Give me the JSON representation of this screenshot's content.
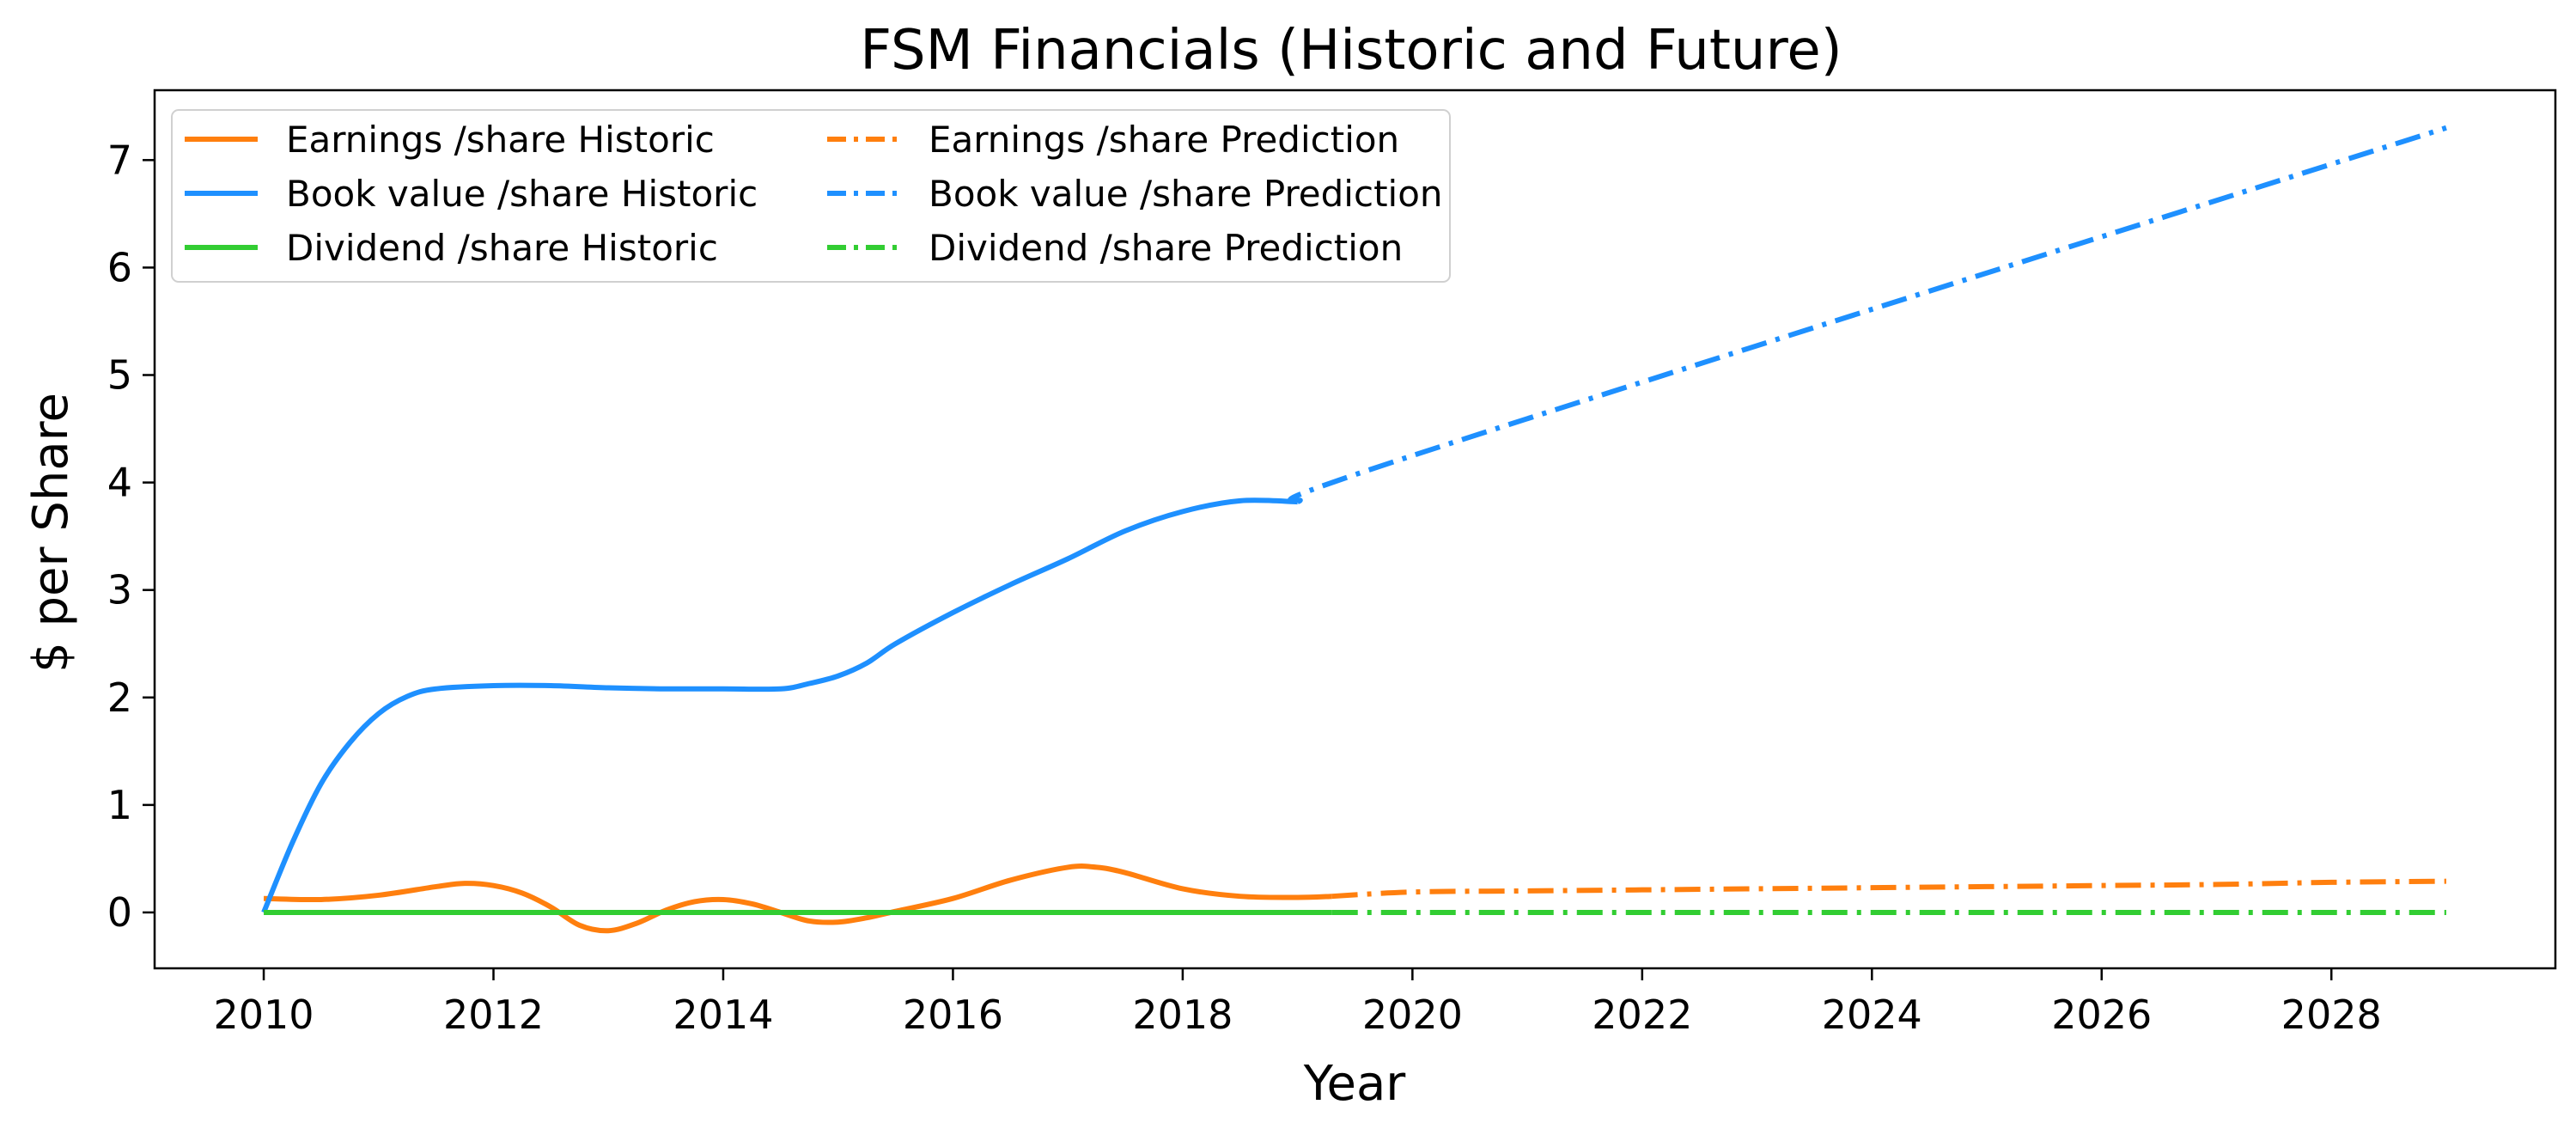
{
  "chart_data": {
    "type": "line",
    "title": "FSM Financials (Historic and Future)",
    "xlabel": "Year",
    "ylabel": "$ per Share",
    "xlim": [
      2009.05,
      2029.95
    ],
    "ylim": [
      -0.52,
      7.65
    ],
    "x_ticks": [
      2010,
      2012,
      2014,
      2016,
      2018,
      2020,
      2022,
      2024,
      2026,
      2028
    ],
    "x_tick_labels": [
      "2010",
      "2012",
      "2014",
      "2016",
      "2018",
      "2020",
      "2022",
      "2024",
      "2026",
      "2028"
    ],
    "y_ticks": [
      0,
      1,
      2,
      3,
      4,
      5,
      6,
      7
    ],
    "y_tick_labels": [
      "0",
      "1",
      "2",
      "3",
      "4",
      "5",
      "6",
      "7"
    ],
    "grid": false,
    "legend_position": "top-left",
    "legend_columns": 2,
    "series": [
      {
        "name": "Earnings /share Historic",
        "color": "#ff7f0e",
        "style": "solid",
        "x": [
          2010,
          2010.5,
          2011,
          2011.5,
          2011.75,
          2012,
          2012.25,
          2012.5,
          2012.75,
          2013,
          2013.25,
          2013.5,
          2013.75,
          2014,
          2014.25,
          2014.5,
          2014.75,
          2015,
          2015.25,
          2015.5,
          2016,
          2016.5,
          2017,
          2017.25,
          2017.5,
          2018,
          2018.5,
          2019,
          2019.3
        ],
        "y": [
          0.13,
          0.12,
          0.16,
          0.24,
          0.27,
          0.25,
          0.18,
          0.05,
          -0.12,
          -0.17,
          -0.1,
          0.02,
          0.1,
          0.12,
          0.08,
          0.0,
          -0.08,
          -0.09,
          -0.05,
          0.01,
          0.13,
          0.3,
          0.42,
          0.42,
          0.37,
          0.22,
          0.15,
          0.14,
          0.15
        ]
      },
      {
        "name": "Book value /share Historic",
        "color": "#1e90ff",
        "style": "solid",
        "x": [
          2010,
          2010.25,
          2010.5,
          2010.75,
          2011,
          2011.25,
          2011.5,
          2012,
          2012.5,
          2013,
          2013.5,
          2014,
          2014.5,
          2014.75,
          2015,
          2015.25,
          2015.5,
          2016,
          2016.5,
          2017,
          2017.5,
          2018,
          2018.5,
          2019
        ],
        "y": [
          0.0,
          0.65,
          1.2,
          1.58,
          1.85,
          2.01,
          2.08,
          2.11,
          2.11,
          2.09,
          2.08,
          2.08,
          2.08,
          2.13,
          2.2,
          2.32,
          2.5,
          2.79,
          3.05,
          3.29,
          3.55,
          3.73,
          3.83,
          3.82
        ]
      },
      {
        "name": "Dividend /share Historic",
        "color": "#32cd32",
        "style": "solid",
        "x": [
          2010,
          2019.3
        ],
        "y": [
          0.0,
          0.0
        ]
      },
      {
        "name": "Earnings /share Prediction",
        "color": "#ff7f0e",
        "style": "dashdot",
        "x": [
          2019.3,
          2020,
          2021,
          2022,
          2023,
          2024,
          2025,
          2026,
          2027,
          2028,
          2029
        ],
        "y": [
          0.15,
          0.19,
          0.2,
          0.21,
          0.22,
          0.23,
          0.24,
          0.25,
          0.26,
          0.28,
          0.29
        ]
      },
      {
        "name": "Book value /share Prediction",
        "color": "#1e90ff",
        "style": "dashdot",
        "x": [
          2019,
          2020,
          2029
        ],
        "y": [
          3.82,
          4.25,
          7.3
        ]
      },
      {
        "name": "Dividend /share Prediction",
        "color": "#32cd32",
        "style": "dashdot",
        "x": [
          2019.3,
          2029
        ],
        "y": [
          0.0,
          0.0
        ]
      }
    ]
  }
}
